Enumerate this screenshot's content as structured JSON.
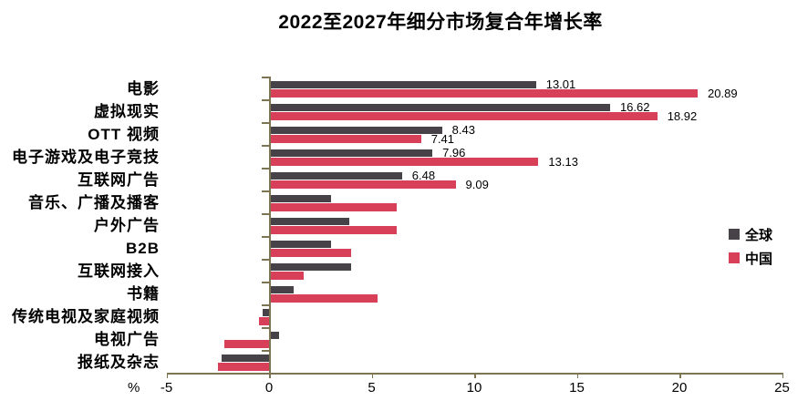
{
  "chart_data": {
    "type": "bar",
    "orientation": "horizontal",
    "title": "2022至2027年细分市场复合年增长率",
    "xlabel_unit": "%",
    "xlim": [
      -5,
      25
    ],
    "x_ticks": [
      -5,
      0,
      5,
      10,
      15,
      20,
      25
    ],
    "grid": false,
    "legend_position": "right",
    "categories": [
      "电影",
      "虚拟现实",
      "OTT 视频",
      "电子游戏及电子竞技",
      "互联网广告",
      "音乐、广播及播客",
      "户外广告",
      "B2B",
      "互联网接入",
      "书籍",
      "传统电视及家庭视频",
      "电视广告",
      "报纸及杂志"
    ],
    "series": [
      {
        "name": "全球",
        "color": "#464247",
        "values": [
          13.01,
          16.62,
          8.43,
          7.96,
          6.48,
          3.0,
          3.9,
          3.0,
          4.0,
          1.2,
          -0.3,
          0.5,
          -2.3
        ],
        "value_labels": [
          "13.01",
          "16.62",
          "8.43",
          "7.96",
          "6.48",
          "",
          "",
          "",
          "",
          "",
          "",
          "",
          ""
        ]
      },
      {
        "name": "中国",
        "color": "#d8405a",
        "values": [
          20.89,
          18.92,
          7.41,
          13.13,
          9.09,
          6.2,
          6.2,
          4.0,
          1.7,
          5.3,
          -0.5,
          -2.2,
          -2.5
        ],
        "value_labels": [
          "20.89",
          "18.92",
          "7.41",
          "13.13",
          "9.09",
          "",
          "",
          "",
          "",
          "",
          "",
          "",
          ""
        ]
      }
    ]
  },
  "colors": {
    "axis": "#7d7552",
    "text": "#000000",
    "background": "#ffffff"
  }
}
